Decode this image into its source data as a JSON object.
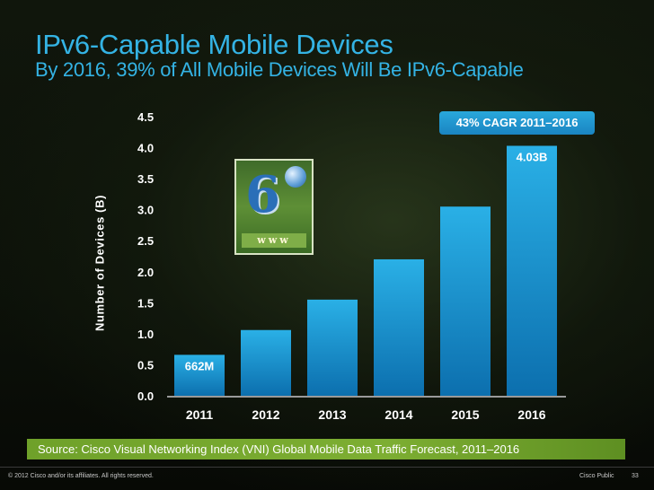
{
  "header": {
    "title": "IPv6-Capable Mobile Devices",
    "subtitle": "By 2016, 39% of All Mobile Devices Will Be IPv6-Capable"
  },
  "callout": {
    "text": "43% CAGR 2011–2016"
  },
  "logo": {
    "text": "www",
    "icon": "ipv6-logo-icon"
  },
  "source": "Source: Cisco Visual Networking Index (VNI) Global Mobile Data Traffic Forecast, 2011–2016",
  "footer": {
    "copyright": "© 2012 Cisco and/or its affiliates. All rights reserved.",
    "classification": "Cisco Public",
    "page": "33"
  },
  "colors": {
    "title": "#34b3e4",
    "bar_top": "#2ab0e6",
    "bar_bottom": "#0c6fae",
    "source_bar": "#7dae32"
  },
  "chart_data": {
    "type": "bar",
    "ylabel": "Number of Devices (B)",
    "xlabel": "",
    "categories": [
      "2011",
      "2012",
      "2013",
      "2014",
      "2015",
      "2016"
    ],
    "values": [
      0.66,
      1.06,
      1.55,
      2.2,
      3.05,
      4.03
    ],
    "ylim": [
      0,
      4.5
    ],
    "yticks": [
      "0.0",
      "0.5",
      "1.0",
      "1.5",
      "2.0",
      "2.5",
      "3.0",
      "3.5",
      "4.0",
      "4.5"
    ],
    "data_labels": [
      {
        "index": 0,
        "text": "662M"
      },
      {
        "index": 5,
        "text": "4.03B"
      }
    ],
    "grid": false
  }
}
